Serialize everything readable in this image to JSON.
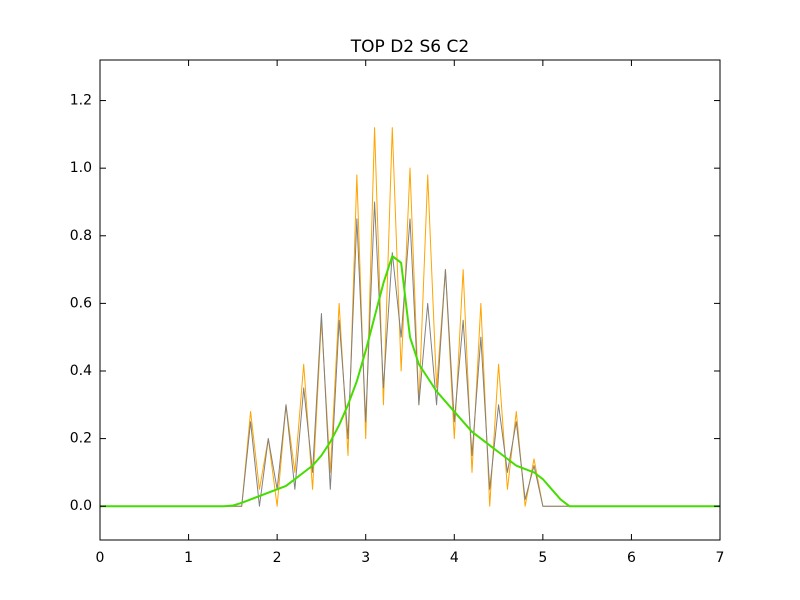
{
  "chart_data": {
    "type": "line",
    "title": "TOP D2 S6 C2",
    "x": [
      0,
      0.1,
      0.2,
      0.3,
      0.4,
      0.5,
      0.6,
      0.7,
      0.8,
      0.9,
      1.0,
      1.1,
      1.2,
      1.3,
      1.4,
      1.5,
      1.6,
      1.7,
      1.8,
      1.9,
      2.0,
      2.1,
      2.2,
      2.3,
      2.4,
      2.5,
      2.6,
      2.7,
      2.8,
      2.9,
      3.0,
      3.1,
      3.2,
      3.3,
      3.4,
      3.5,
      3.6,
      3.7,
      3.8,
      3.9,
      4.0,
      4.1,
      4.2,
      4.3,
      4.4,
      4.5,
      4.6,
      4.7,
      4.8,
      4.9,
      5.0,
      5.1,
      5.2,
      5.3,
      5.4,
      5.5,
      5.6,
      5.7,
      5.8,
      5.9,
      6.0,
      6.1,
      6.2,
      6.3,
      6.4,
      6.5,
      6.6,
      6.7,
      6.8,
      6.9,
      7.0
    ],
    "series": [
      {
        "color": "#ffa500",
        "values": [
          0,
          0,
          0,
          0,
          0,
          0,
          0,
          0,
          0,
          0,
          0,
          0,
          0,
          0,
          0,
          0,
          0,
          0.28,
          0.05,
          0.2,
          0,
          0.3,
          0.1,
          0.42,
          0.05,
          0.55,
          0.1,
          0.6,
          0.15,
          0.98,
          0.2,
          1.12,
          0.3,
          1.12,
          0.4,
          1.0,
          0.3,
          0.98,
          0.35,
          0.7,
          0.2,
          0.7,
          0.1,
          0.6,
          0,
          0.42,
          0.05,
          0.28,
          0,
          0.14,
          0,
          0,
          0,
          0,
          0,
          0,
          0,
          0,
          0,
          0,
          0,
          0,
          0,
          0,
          0,
          0,
          0,
          0,
          0,
          0,
          0
        ]
      },
      {
        "color": "#808080",
        "values": [
          0,
          0,
          0,
          0,
          0,
          0,
          0,
          0,
          0,
          0,
          0,
          0,
          0,
          0,
          0,
          0,
          0,
          0.25,
          0,
          0.2,
          0.05,
          0.3,
          0.05,
          0.35,
          0.1,
          0.57,
          0.05,
          0.55,
          0.2,
          0.85,
          0.25,
          0.9,
          0.35,
          0.75,
          0.5,
          0.85,
          0.3,
          0.6,
          0.3,
          0.7,
          0.25,
          0.55,
          0.15,
          0.5,
          0.05,
          0.3,
          0.1,
          0.25,
          0.02,
          0.12,
          0,
          0,
          0,
          0,
          0,
          0,
          0,
          0,
          0,
          0,
          0,
          0,
          0,
          0,
          0,
          0,
          0,
          0,
          0,
          0,
          0
        ]
      },
      {
        "color": "#44dd00",
        "values": [
          0,
          0,
          0,
          0,
          0,
          0,
          0,
          0,
          0,
          0,
          0,
          0,
          0,
          0,
          0,
          0.002,
          0.01,
          0.02,
          0.03,
          0.04,
          0.05,
          0.06,
          0.08,
          0.1,
          0.12,
          0.15,
          0.19,
          0.24,
          0.3,
          0.37,
          0.46,
          0.56,
          0.66,
          0.74,
          0.72,
          0.5,
          0.42,
          0.38,
          0.34,
          0.31,
          0.28,
          0.25,
          0.22,
          0.2,
          0.18,
          0.16,
          0.14,
          0.12,
          0.11,
          0.1,
          0.08,
          0.05,
          0.02,
          0,
          0,
          0,
          0,
          0,
          0,
          0,
          0,
          0,
          0,
          0,
          0,
          0,
          0,
          0,
          0,
          0,
          0
        ]
      }
    ],
    "xlim": [
      0,
      7
    ],
    "xticks": [
      0,
      1,
      2,
      3,
      4,
      5,
      6,
      7
    ],
    "ylim": [
      -0.1,
      1.32
    ],
    "yticks": [
      {
        "value": 0,
        "label": "0.0"
      },
      0.2,
      0.4,
      0.6,
      0.8,
      {
        "value": 1,
        "label": "1.0"
      },
      1.2
    ],
    "grid": false
  }
}
